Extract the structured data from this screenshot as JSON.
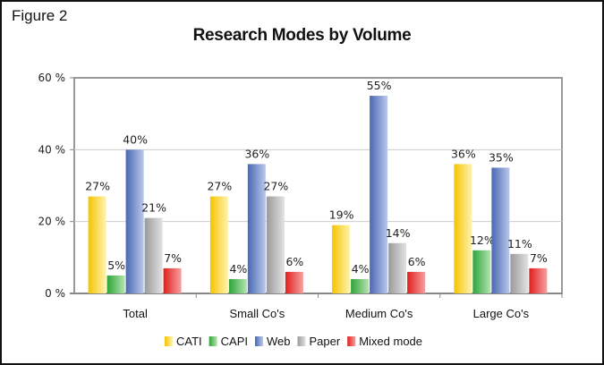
{
  "figure_label": "Figure 2",
  "chart_data": {
    "type": "bar",
    "title": "Research Modes by Volume",
    "xlabel": "",
    "ylabel": "",
    "ylim": [
      0,
      60
    ],
    "yticks": [
      0,
      20,
      40,
      60
    ],
    "ytick_labels": [
      "0 %",
      "20 %",
      "40 %",
      "60 %"
    ],
    "grid": true,
    "legend_position": "bottom",
    "categories": [
      "Total",
      "Small Co's",
      "Medium Co's",
      "Large Co's"
    ],
    "series": [
      {
        "name": "CATI",
        "color": "#f5c400",
        "light": "#fff3b0",
        "values": [
          27,
          27,
          19,
          36
        ],
        "labels": [
          "27%",
          "27%",
          "19%",
          "36%"
        ]
      },
      {
        "name": "CAPI",
        "color": "#2ea43a",
        "light": "#b6e4b0",
        "values": [
          5,
          4,
          4,
          12
        ],
        "labels": [
          "5%",
          "4%",
          "4%",
          "12%"
        ]
      },
      {
        "name": "Web",
        "color": "#4a68b4",
        "light": "#b9c8ea",
        "values": [
          40,
          36,
          55,
          35
        ],
        "labels": [
          "40%",
          "36%",
          "55%",
          "35%"
        ]
      },
      {
        "name": "Paper",
        "color": "#9a9a9a",
        "light": "#e2e2e2",
        "values": [
          21,
          27,
          14,
          11
        ],
        "labels": [
          "21%",
          "27%",
          "14%",
          "11%"
        ]
      },
      {
        "name": "Mixed mode",
        "color": "#e0201c",
        "light": "#f5a0a0",
        "values": [
          7,
          6,
          6,
          7
        ],
        "labels": [
          "7%",
          "6%",
          "6%",
          "7%"
        ]
      }
    ]
  }
}
